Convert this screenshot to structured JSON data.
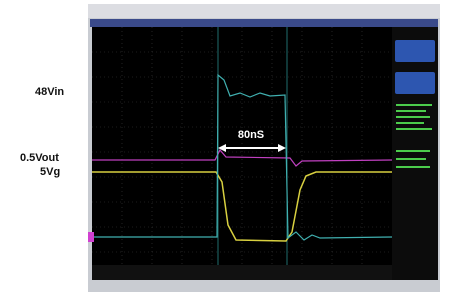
{
  "labels": {
    "vin": "48Vin",
    "vout": "0.5Vout",
    "vg": "5Vg"
  },
  "annotation": "80nS"
}
